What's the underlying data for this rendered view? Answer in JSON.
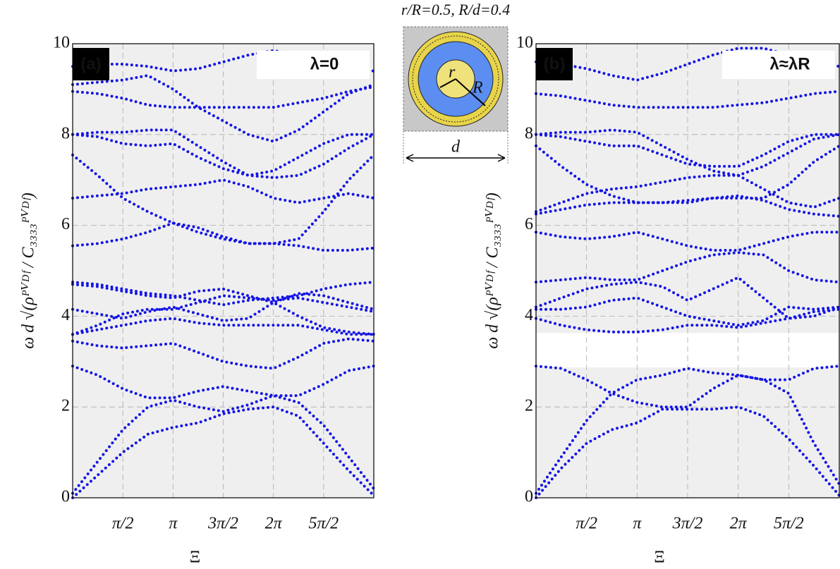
{
  "inset": {
    "caption": "r/R=0.5, R/d=0.4",
    "r_label": "r",
    "R_label": "R",
    "d_label": "d"
  },
  "chart_data": [
    {
      "type": "scatter",
      "panel_label": "(a)",
      "annotation": "λ=0",
      "x_label": "Ξ",
      "y_label": "ω d √(ρᴾⱽᴰᶠ / C₃₃₃₃ᴾⱽᴰᶠ)",
      "color": "#1414e6",
      "grid": true,
      "xlim": [
        0,
        9.4248
      ],
      "ylim": [
        0,
        10
      ],
      "yticks": [
        0,
        2,
        4,
        6,
        8,
        10
      ],
      "xticks": [
        {
          "value": 1.5708,
          "label": "π/2"
        },
        {
          "value": 3.1416,
          "label": "π"
        },
        {
          "value": 4.7124,
          "label": "3π/2"
        },
        {
          "value": 6.2832,
          "label": "2π"
        },
        {
          "value": 7.854,
          "label": "5π/2"
        }
      ],
      "x": [
        0,
        0.785,
        1.571,
        2.356,
        3.142,
        3.927,
        4.712,
        5.498,
        6.283,
        7.069,
        7.854,
        8.639,
        9.425
      ],
      "bands": [
        [
          0,
          0.5,
          1.0,
          1.4,
          1.55,
          1.65,
          1.85,
          1.95,
          2.0,
          1.8,
          1.2,
          0.6,
          0.05
        ],
        [
          0.1,
          0.8,
          1.5,
          2.0,
          2.15,
          2.0,
          1.9,
          2.05,
          2.25,
          2.1,
          1.6,
          0.9,
          0.2
        ],
        [
          2.9,
          2.7,
          2.4,
          2.2,
          2.2,
          2.35,
          2.45,
          2.35,
          2.25,
          2.25,
          2.5,
          2.8,
          2.9
        ],
        [
          3.45,
          3.35,
          3.3,
          3.35,
          3.4,
          3.2,
          3.0,
          2.9,
          2.85,
          3.1,
          3.4,
          3.5,
          3.45
        ],
        [
          3.6,
          3.7,
          3.8,
          3.9,
          3.95,
          3.85,
          3.8,
          3.8,
          3.8,
          3.8,
          3.7,
          3.6,
          3.6
        ],
        [
          4.15,
          4.05,
          3.95,
          4.1,
          4.2,
          4.05,
          3.9,
          3.95,
          4.3,
          4.0,
          3.75,
          3.65,
          3.6
        ],
        [
          3.6,
          3.8,
          4.05,
          4.15,
          4.15,
          4.3,
          4.45,
          4.4,
          4.35,
          4.4,
          4.3,
          4.2,
          4.1
        ],
        [
          4.7,
          4.65,
          4.55,
          4.45,
          4.4,
          4.55,
          4.6,
          4.45,
          4.3,
          4.5,
          4.45,
          4.3,
          4.15
        ],
        [
          4.75,
          4.7,
          4.6,
          4.5,
          4.45,
          4.35,
          4.25,
          4.35,
          4.4,
          4.45,
          4.6,
          4.7,
          4.75
        ],
        [
          5.55,
          5.6,
          5.7,
          5.85,
          6.05,
          5.85,
          5.7,
          5.6,
          5.6,
          5.55,
          5.45,
          5.45,
          5.5
        ],
        [
          6.6,
          6.65,
          6.7,
          6.8,
          6.85,
          6.9,
          7.0,
          6.85,
          6.6,
          6.5,
          6.6,
          6.7,
          6.6
        ],
        [
          7.55,
          7.1,
          6.6,
          6.3,
          6.05,
          5.95,
          5.75,
          5.6,
          5.6,
          5.7,
          6.3,
          7.0,
          7.55
        ],
        [
          8.0,
          8.05,
          8.05,
          8.1,
          8.1,
          7.75,
          7.4,
          7.1,
          7.05,
          7.1,
          7.35,
          7.7,
          8.0
        ],
        [
          8.0,
          7.95,
          7.8,
          7.75,
          7.8,
          7.5,
          7.25,
          7.1,
          7.2,
          7.5,
          7.8,
          8.0,
          8.0
        ],
        [
          8.95,
          8.9,
          8.8,
          8.65,
          8.6,
          8.6,
          8.6,
          8.6,
          8.6,
          8.7,
          8.8,
          8.95,
          9.05
        ],
        [
          9.1,
          9.15,
          9.2,
          9.3,
          9.0,
          8.6,
          8.3,
          8.0,
          7.85,
          8.1,
          8.5,
          8.9,
          9.1
        ],
        [
          9.5,
          9.55,
          9.55,
          9.5,
          9.4,
          9.45,
          9.6,
          9.75,
          9.85,
          9.75,
          9.55,
          9.4,
          9.4
        ]
      ]
    },
    {
      "type": "scatter",
      "panel_label": "(b)",
      "annotation": "λ≈λR",
      "x_label": "Ξ",
      "y_label": "ω d √(ρᴾⱽᴰᶠ / C₃₃₃₃ᴾⱽᴰᶠ)",
      "color": "#1414e6",
      "grid": true,
      "xlim": [
        0,
        9.4248
      ],
      "ylim": [
        0,
        10
      ],
      "yticks": [
        0,
        2,
        4,
        6,
        8,
        10
      ],
      "gap": [
        2.87,
        3.63
      ],
      "xticks": [
        {
          "value": 1.5708,
          "label": "π/2"
        },
        {
          "value": 3.1416,
          "label": "π"
        },
        {
          "value": 4.7124,
          "label": "3π/2"
        },
        {
          "value": 6.2832,
          "label": "2π"
        },
        {
          "value": 7.854,
          "label": "5π/2"
        }
      ],
      "x": [
        0,
        0.785,
        1.571,
        2.356,
        3.142,
        3.927,
        4.712,
        5.498,
        6.283,
        7.069,
        7.854,
        8.639,
        9.425
      ],
      "bands": [
        [
          0,
          0.65,
          1.2,
          1.5,
          1.65,
          1.95,
          1.95,
          1.95,
          2.0,
          1.8,
          1.3,
          0.7,
          0.05
        ],
        [
          0.1,
          0.9,
          1.7,
          2.3,
          2.6,
          2.7,
          2.85,
          2.75,
          2.7,
          2.6,
          2.3,
          1.2,
          0.3
        ],
        [
          2.9,
          2.85,
          2.6,
          2.3,
          2.1,
          2.0,
          2.0,
          2.4,
          2.7,
          2.6,
          2.6,
          2.85,
          2.9
        ],
        [
          3.95,
          3.8,
          3.7,
          3.65,
          3.65,
          3.7,
          3.8,
          3.8,
          3.75,
          3.85,
          3.95,
          4.1,
          4.15
        ],
        [
          4.15,
          4.15,
          4.2,
          4.35,
          4.4,
          4.2,
          4.0,
          3.9,
          3.8,
          3.9,
          4.2,
          4.15,
          4.2
        ],
        [
          4.2,
          4.4,
          4.6,
          4.7,
          4.75,
          4.65,
          4.35,
          4.6,
          4.85,
          4.4,
          3.95,
          4.0,
          4.2
        ],
        [
          4.75,
          4.8,
          4.85,
          4.8,
          4.8,
          5.0,
          5.2,
          5.35,
          5.4,
          5.35,
          5.0,
          4.8,
          4.75
        ],
        [
          5.85,
          5.75,
          5.7,
          5.75,
          5.85,
          5.7,
          5.55,
          5.45,
          5.45,
          5.6,
          5.75,
          5.85,
          5.85
        ],
        [
          6.25,
          6.35,
          6.45,
          6.5,
          6.5,
          6.5,
          6.55,
          6.6,
          6.65,
          6.55,
          6.35,
          6.25,
          6.2
        ],
        [
          6.3,
          6.5,
          6.7,
          6.8,
          6.85,
          6.95,
          7.05,
          7.1,
          7.1,
          6.8,
          6.5,
          6.4,
          6.6
        ],
        [
          7.75,
          7.3,
          6.9,
          6.65,
          6.5,
          6.5,
          6.5,
          6.6,
          6.6,
          6.6,
          6.9,
          7.4,
          7.75
        ],
        [
          8.0,
          8.05,
          8.05,
          8.1,
          8.05,
          7.75,
          7.45,
          7.2,
          7.1,
          7.3,
          7.6,
          7.9,
          8.0
        ],
        [
          8.0,
          7.95,
          7.85,
          7.75,
          7.75,
          7.55,
          7.35,
          7.3,
          7.3,
          7.55,
          7.85,
          8.0,
          8.0
        ],
        [
          8.9,
          8.85,
          8.75,
          8.65,
          8.6,
          8.6,
          8.6,
          8.6,
          8.65,
          8.7,
          8.8,
          8.9,
          8.95
        ],
        [
          9.6,
          9.55,
          9.45,
          9.3,
          9.2,
          9.35,
          9.55,
          9.75,
          9.9,
          9.9,
          9.75,
          9.6,
          9.5
        ]
      ]
    }
  ]
}
